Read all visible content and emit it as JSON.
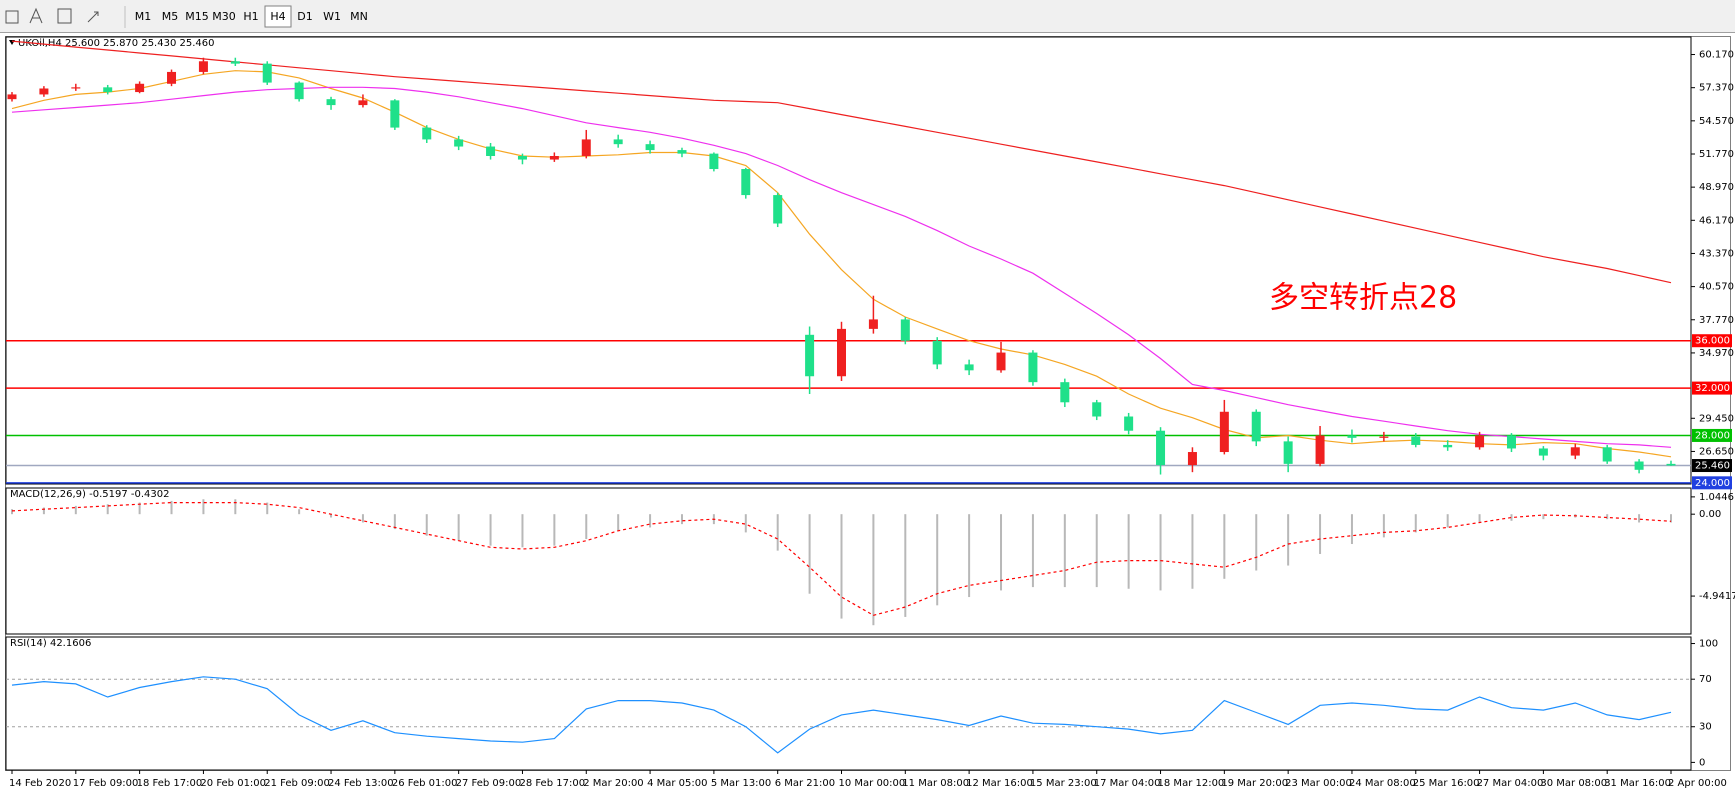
{
  "toolbar": {
    "timeframes": [
      "M1",
      "M5",
      "M15",
      "M30",
      "H1",
      "H4",
      "D1",
      "W1",
      "MN"
    ],
    "active": "H4"
  },
  "chart_data": [
    {
      "type": "candlestick",
      "title": "UKOil,H4  25.600 25.870 25.430 25.460",
      "annotation": "多空转折点28",
      "categories": [
        "14 Feb 2020",
        null,
        "17 Feb 09:00",
        null,
        "18 Feb 17:00",
        null,
        "20 Feb 01:00",
        null,
        "21 Feb 09:00",
        null,
        "24 Feb 13:00",
        null,
        "26 Feb 01:00",
        null,
        "27 Feb 09:00",
        null,
        "28 Feb 17:00",
        null,
        "2 Mar 20:00",
        null,
        "4 Mar 05:00",
        null,
        "5 Mar 13:00",
        null,
        "6 Mar 21:00",
        null,
        "10 Mar 00:00",
        null,
        "11 Mar 08:00",
        null,
        "12 Mar 16:00",
        null,
        "15 Mar 23:00",
        null,
        "17 Mar 04:00",
        null,
        "18 Mar 12:00",
        null,
        "19 Mar 20:00",
        null,
        "23 Mar 00:00",
        null,
        "24 Mar 08:00",
        null,
        "25 Mar 16:00",
        null,
        "27 Mar 04:00",
        null,
        "30 Mar 08:00",
        null,
        "31 Mar 16:00",
        null,
        "2 Apr 00:00"
      ],
      "open": [
        56.4,
        56.8,
        57.3,
        57.4,
        57.0,
        57.7,
        58.7,
        59.6,
        59.4,
        57.8,
        56.4,
        55.9,
        56.3,
        54.0,
        53.0,
        52.4,
        51.6,
        51.3,
        51.6,
        53.0,
        52.6,
        52.1,
        51.8,
        50.5,
        48.3,
        36.5,
        33.0,
        37.0,
        37.8,
        36.0,
        34.0,
        33.5,
        35.0,
        32.5,
        30.8,
        29.6,
        28.4,
        25.5,
        26.6,
        30.0,
        27.5,
        25.6,
        28.0,
        27.8,
        27.9,
        27.2,
        27.0,
        28.0,
        26.9,
        26.3,
        27.0,
        25.8,
        25.6
      ],
      "high": [
        57.0,
        57.5,
        57.7,
        57.6,
        57.9,
        58.9,
        59.9,
        59.9,
        59.6,
        57.9,
        56.6,
        56.8,
        56.4,
        54.2,
        53.3,
        52.7,
        51.8,
        51.9,
        53.8,
        53.4,
        52.9,
        52.3,
        51.9,
        50.6,
        48.5,
        37.2,
        37.6,
        39.8,
        38.0,
        36.3,
        34.4,
        35.9,
        35.2,
        32.8,
        31.0,
        29.9,
        28.7,
        27.0,
        31.0,
        30.2,
        27.9,
        28.8,
        28.5,
        28.3,
        28.2,
        27.6,
        28.3,
        28.2,
        27.1,
        27.3,
        27.2,
        26.0,
        25.87
      ],
      "low": [
        56.2,
        56.6,
        57.1,
        56.8,
        56.9,
        57.5,
        58.5,
        59.2,
        57.6,
        56.2,
        55.5,
        55.7,
        53.8,
        52.7,
        52.1,
        51.3,
        50.9,
        51.1,
        51.4,
        52.3,
        51.8,
        51.5,
        50.3,
        48.0,
        45.6,
        31.5,
        32.6,
        36.6,
        35.7,
        33.6,
        33.1,
        33.3,
        32.2,
        30.4,
        29.3,
        28.1,
        24.7,
        24.9,
        26.4,
        27.1,
        24.9,
        25.4,
        27.4,
        27.5,
        27.0,
        26.7,
        26.8,
        26.6,
        25.9,
        26.0,
        25.6,
        24.8,
        25.43
      ],
      "close": [
        56.8,
        57.3,
        57.4,
        57.0,
        57.7,
        58.7,
        59.6,
        59.4,
        57.8,
        56.4,
        55.9,
        56.3,
        54.0,
        53.0,
        52.4,
        51.6,
        51.3,
        51.6,
        53.0,
        52.6,
        52.1,
        51.8,
        50.5,
        48.3,
        45.9,
        33.0,
        37.0,
        37.8,
        36.0,
        34.0,
        33.5,
        35.0,
        32.5,
        30.8,
        29.6,
        28.4,
        25.5,
        26.6,
        30.0,
        27.5,
        25.6,
        28.0,
        27.8,
        27.9,
        27.2,
        27.0,
        28.0,
        26.9,
        26.3,
        27.0,
        25.8,
        25.1,
        25.46
      ],
      "up_color": "#ef2020",
      "down_color": "#1fe08a",
      "series": [
        {
          "color": "#f5a623",
          "values": [
            55.6,
            56.3,
            56.8,
            57.0,
            57.3,
            57.9,
            58.5,
            58.8,
            58.7,
            58.2,
            57.3,
            56.5,
            55.3,
            54.0,
            53.0,
            52.2,
            51.6,
            51.5,
            51.6,
            51.7,
            51.9,
            51.9,
            51.6,
            50.8,
            48.5,
            45.0,
            42.0,
            39.5,
            38.0,
            37.0,
            36.0,
            35.3,
            34.8,
            34.0,
            33.0,
            31.5,
            30.3,
            29.5,
            28.5,
            27.8,
            28.0,
            27.6,
            27.3,
            27.5,
            27.6,
            27.5,
            27.3,
            27.2,
            27.4,
            27.3,
            26.9,
            26.6,
            26.2
          ]
        },
        {
          "color": "#ee30ee",
          "values": [
            55.3,
            55.5,
            55.7,
            55.9,
            56.1,
            56.4,
            56.7,
            57.0,
            57.2,
            57.3,
            57.4,
            57.4,
            57.3,
            57.0,
            56.6,
            56.1,
            55.6,
            55.0,
            54.4,
            54.0,
            53.6,
            53.1,
            52.5,
            51.8,
            50.8,
            49.6,
            48.5,
            47.5,
            46.5,
            45.3,
            44.0,
            42.9,
            41.7,
            40.0,
            38.3,
            36.5,
            34.5,
            32.3,
            31.8,
            31.2,
            30.6,
            30.1,
            29.6,
            29.2,
            28.8,
            28.4,
            28.1,
            27.9,
            27.7,
            27.5,
            27.3,
            27.2,
            27.0
          ]
        },
        {
          "color": "#ee2020",
          "values": [
            61.3,
            61.05,
            60.8,
            60.55,
            60.3,
            60.05,
            59.8,
            59.55,
            59.3,
            59.05,
            58.8,
            58.55,
            58.3,
            58.1,
            57.9,
            57.7,
            57.5,
            57.3,
            57.1,
            56.9,
            56.7,
            56.5,
            56.3,
            56.2,
            56.1,
            55.6,
            55.1,
            54.6,
            54.1,
            53.6,
            53.1,
            52.6,
            52.1,
            51.6,
            51.1,
            50.6,
            50.1,
            49.6,
            49.1,
            48.5,
            47.9,
            47.3,
            46.7,
            46.1,
            45.5,
            44.9,
            44.3,
            43.7,
            43.1,
            42.6,
            42.1,
            41.5,
            40.9
          ]
        }
      ],
      "hlines": [
        {
          "value": 36,
          "label": "36.000",
          "color": "#ff0000",
          "label_color": "#ff0000"
        },
        {
          "value": 32,
          "label": "32.000",
          "color": "#ff0000",
          "label_color": "#ff0000"
        },
        {
          "value": 28,
          "label": "28.000",
          "color": "#00c000",
          "label_color": "#00c000"
        },
        {
          "value": 25.46,
          "label": "25.460",
          "color": "#a0a8c0",
          "label_color": "#000000"
        },
        {
          "value": 24,
          "label": "24.000",
          "color": "#2040e0",
          "label_color": "#2040e0"
        }
      ],
      "ylim": [
        23.9,
        61.65
      ],
      "yticks": [
        {
          "value": 60.17,
          "label": "60.170"
        },
        {
          "value": 57.37,
          "label": "57.370"
        },
        {
          "value": 54.57,
          "label": "54.570"
        },
        {
          "value": 51.77,
          "label": "51.770"
        },
        {
          "value": 48.97,
          "label": "48.970"
        },
        {
          "value": 46.17,
          "label": "46.170"
        },
        {
          "value": 43.37,
          "label": "43.370"
        },
        {
          "value": 40.57,
          "label": "40.570"
        },
        {
          "value": 37.77,
          "label": "37.770"
        },
        {
          "value": 34.97,
          "label": "34.970"
        },
        {
          "value": 29.45,
          "label": "29.450"
        },
        {
          "value": 26.65,
          "label": "26.650"
        }
      ]
    },
    {
      "type": "macd",
      "title": "MACD(12,26,9) -0.5197 -0.4302",
      "histogram": [
        0.3,
        0.4,
        0.5,
        0.6,
        0.7,
        0.8,
        0.9,
        0.9,
        0.7,
        0.3,
        -0.2,
        -0.5,
        -0.9,
        -1.3,
        -1.6,
        -1.9,
        -2.0,
        -1.9,
        -1.5,
        -1.0,
        -0.8,
        -0.6,
        -0.6,
        -1.1,
        -2.2,
        -4.8,
        -6.3,
        -6.7,
        -6.2,
        -5.5,
        -5.0,
        -4.6,
        -4.4,
        -4.4,
        -4.4,
        -4.5,
        -4.6,
        -4.5,
        -3.9,
        -3.4,
        -3.1,
        -2.4,
        -1.8,
        -1.4,
        -1.1,
        -0.8,
        -0.5,
        -0.4,
        -0.3,
        -0.2,
        -0.3,
        -0.5,
        -0.5
      ],
      "signal": [
        0.2,
        0.3,
        0.4,
        0.5,
        0.6,
        0.7,
        0.7,
        0.7,
        0.6,
        0.4,
        0.0,
        -0.4,
        -0.8,
        -1.2,
        -1.6,
        -2.0,
        -2.1,
        -2.0,
        -1.6,
        -1.0,
        -0.6,
        -0.4,
        -0.3,
        -0.6,
        -1.5,
        -3.2,
        -5.0,
        -6.1,
        -5.6,
        -4.8,
        -4.3,
        -4.0,
        -3.7,
        -3.4,
        -2.9,
        -2.8,
        -2.8,
        -3.0,
        -3.2,
        -2.6,
        -1.8,
        -1.5,
        -1.3,
        -1.1,
        -1.0,
        -0.8,
        -0.5,
        -0.2,
        -0.05,
        -0.1,
        -0.2,
        -0.3,
        -0.43
      ],
      "hist_color": "#b8b8b8",
      "signal_color": "#ff0000",
      "ylim": [
        -7.23,
        1.58
      ],
      "yticks": [
        1.0446,
        {
          "value": 0,
          "label": "0.00"
        },
        -4.9417
      ]
    },
    {
      "type": "rsi",
      "title": "RSI(14) 42.1606",
      "values": [
        65,
        68,
        66,
        55,
        63,
        68,
        72,
        70,
        62,
        40,
        27,
        35,
        25,
        22,
        20,
        18,
        17,
        20,
        45,
        52,
        52,
        50,
        44,
        30,
        8,
        28,
        40,
        44,
        40,
        36,
        31,
        39,
        33,
        32,
        30,
        28,
        24,
        27,
        52,
        42,
        32,
        48,
        50,
        48,
        45,
        44,
        55,
        46,
        44,
        50,
        40,
        36,
        42.16
      ],
      "color": "#1e90ff",
      "ylim": [
        -6.4,
        105.5
      ],
      "yticks": [
        100,
        70,
        30,
        0
      ],
      "levels": [
        70,
        30
      ]
    }
  ]
}
